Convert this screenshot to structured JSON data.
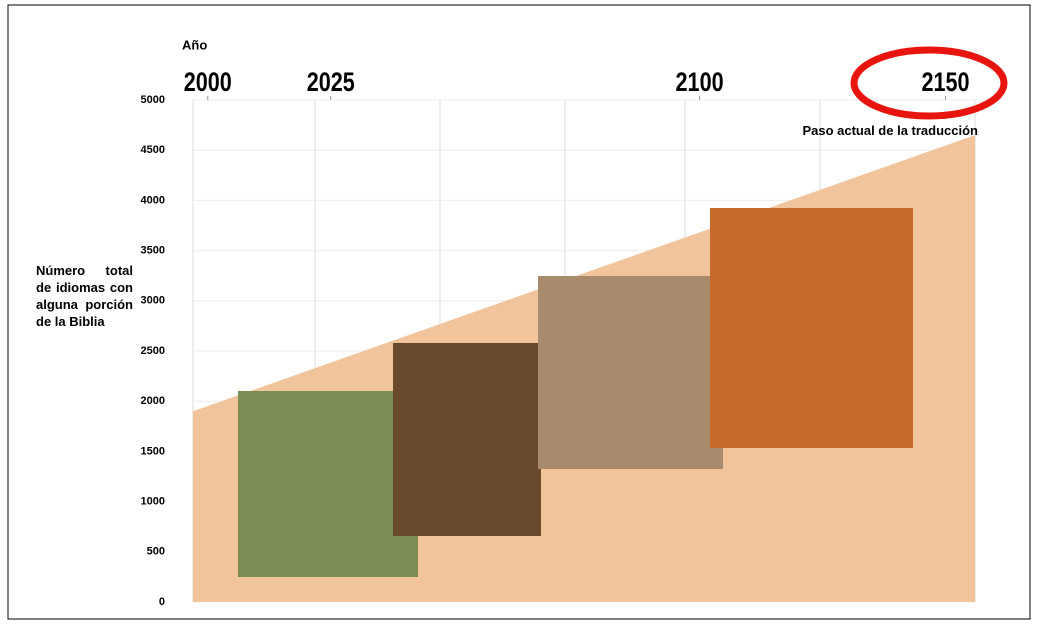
{
  "chart_data": {
    "type": "area",
    "x_label": "Año",
    "y_label": "Número total de idiomas con alguna porción de la Biblia",
    "annotation": "Paso actual de la traducción",
    "series": [
      {
        "name": null,
        "color": "#f2c49c",
        "x": [
          1997,
          2156
        ],
        "values": [
          1900,
          4650
        ]
      }
    ],
    "xlim": [
      1997,
      2156
    ],
    "xticks": [
      2000,
      2025,
      2100,
      2150
    ],
    "ylim": [
      0,
      5000
    ],
    "yticks": [
      0,
      500,
      1000,
      1500,
      2000,
      2500,
      3000,
      3500,
      4000,
      4500,
      5000
    ],
    "grid": true
  }
}
